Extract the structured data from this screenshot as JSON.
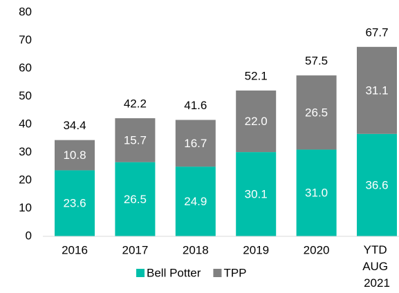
{
  "chart_data": {
    "type": "stacked_bar",
    "categories": [
      "2016",
      "2017",
      "2018",
      "2019",
      "2020",
      "YTD AUG 2021"
    ],
    "series": [
      {
        "name": "Bell Potter",
        "color": "#00bfaa",
        "values": [
          23.6,
          26.5,
          24.9,
          30.1,
          31.0,
          36.6
        ],
        "value_labels": [
          "23.6",
          "26.5",
          "24.9",
          "30.1",
          "31.0",
          "36.6"
        ]
      },
      {
        "name": "TPP",
        "color": "#808080",
        "values": [
          10.8,
          15.7,
          16.7,
          22.0,
          26.5,
          31.1
        ],
        "value_labels": [
          "10.8",
          "15.7",
          "16.7",
          "22.0",
          "26.5",
          "31.1"
        ]
      }
    ],
    "totals": [
      34.4,
      42.2,
      41.6,
      52.1,
      57.5,
      67.7
    ],
    "ylim": [
      0,
      80
    ],
    "yticks": [
      0,
      10,
      20,
      30,
      40,
      50,
      60,
      70,
      80
    ],
    "grid": false,
    "legend": "bottom"
  }
}
